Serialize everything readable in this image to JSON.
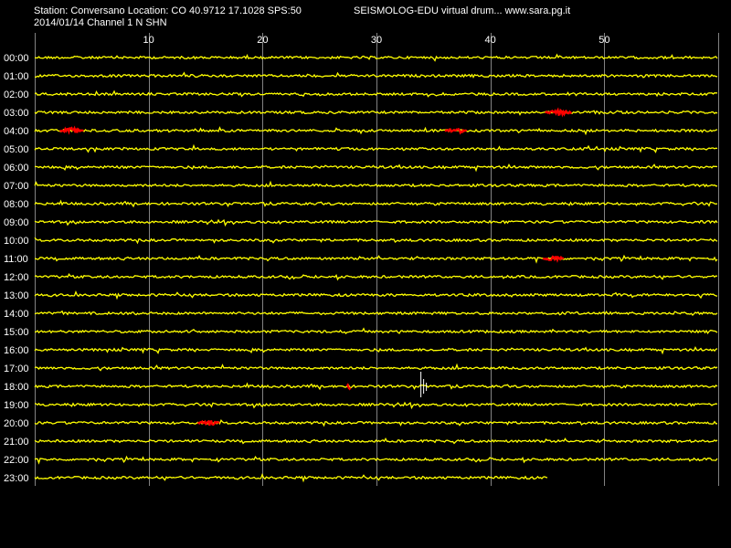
{
  "header": {
    "station_line": "Station: Conversano Location: CO 40.9712 17.1028 SPS:50",
    "date_channel_line": "2014/01/14  Channel 1 N SHN",
    "app_line": "SEISMOLOG-EDU virtual drum... www.sara.pg.it"
  },
  "drum": {
    "minute_labels": [
      "10",
      "20",
      "30",
      "40",
      "50"
    ],
    "minute_values": [
      10,
      20,
      30,
      40,
      50
    ],
    "minute_max": 60,
    "hour_labels": [
      "00:00",
      "01:00",
      "02:00",
      "03:00",
      "04:00",
      "05:00",
      "06:00",
      "07:00",
      "08:00",
      "09:00",
      "10:00",
      "11:00",
      "12:00",
      "13:00",
      "14:00",
      "15:00",
      "16:00",
      "17:00",
      "18:00",
      "19:00",
      "20:00",
      "21:00",
      "22:00",
      "23:00"
    ],
    "last_row_end_minute": 45,
    "trace_color": "#ffff00",
    "event_color": "#ff0000",
    "grid_color": "#ffffff",
    "events": [
      {
        "hour": 3,
        "start_minute": 44.8,
        "end_minute": 47.2
      },
      {
        "hour": 4,
        "start_minute": 2.2,
        "end_minute": 4.3
      },
      {
        "hour": 4,
        "start_minute": 36.0,
        "end_minute": 38.0
      },
      {
        "hour": 11,
        "start_minute": 44.6,
        "end_minute": 46.5
      },
      {
        "hour": 18,
        "start_minute": 27.4,
        "end_minute": 27.8
      },
      {
        "hour": 20,
        "start_minute": 14.3,
        "end_minute": 16.3
      }
    ],
    "spikes": [
      {
        "hour": 18,
        "minute": 33.9
      }
    ]
  }
}
